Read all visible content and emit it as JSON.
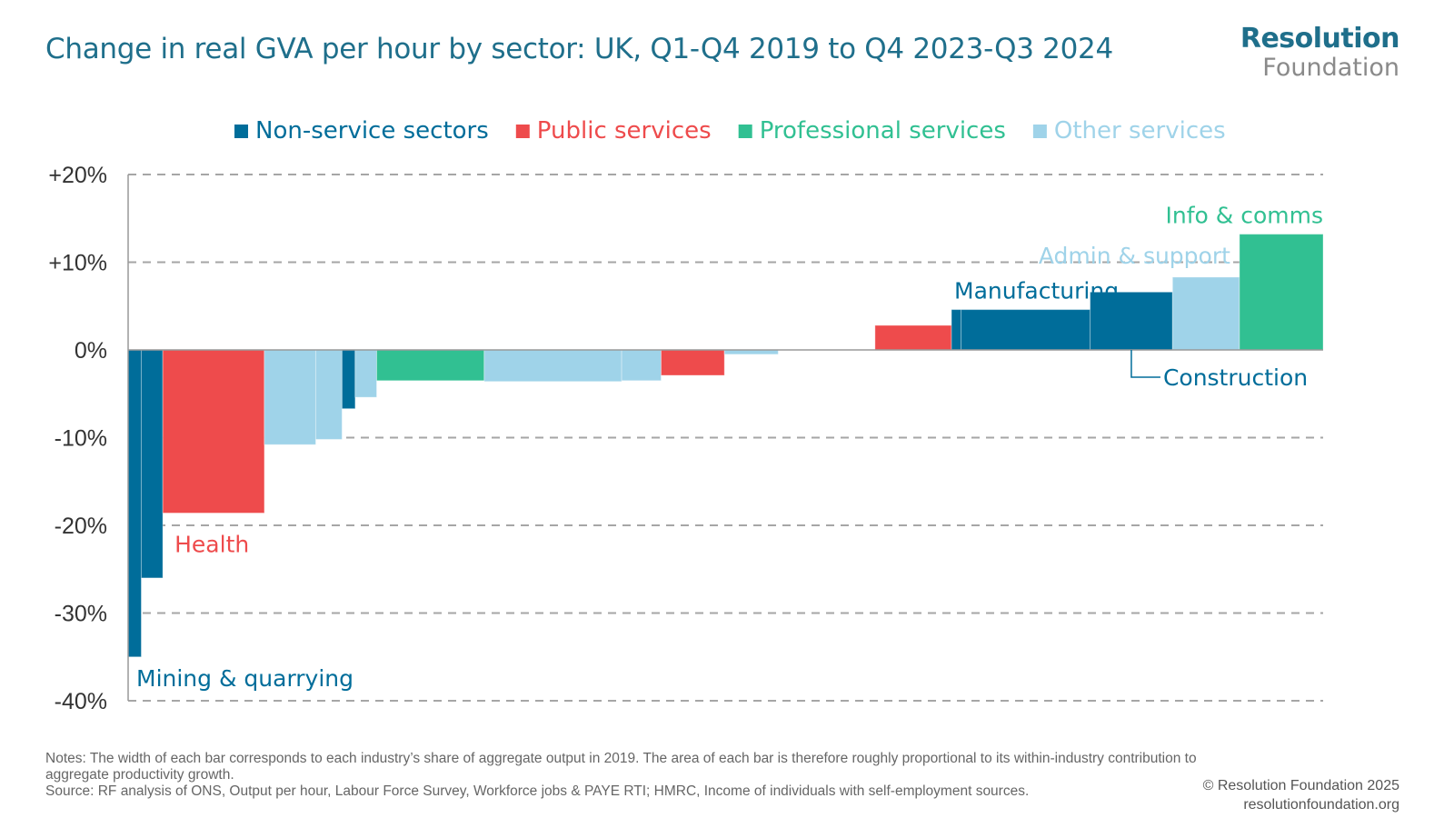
{
  "header": {
    "title": "Change in real GVA per hour by sector: UK, Q1-Q4 2019 to Q4 2023-Q3 2024",
    "logo_line1": "Resolution",
    "logo_line2": "Foundation"
  },
  "colors": {
    "Non-service sectors": "#006d9a",
    "Public services": "#ee4b4c",
    "Professional services": "#31c092",
    "Other services": "#9fd3e9",
    "grid": "#a6a6a6",
    "axis_text": "#333333"
  },
  "chart_data": {
    "type": "bar",
    "subtype": "variable-width",
    "title": "Change in real GVA per hour by sector: UK, Q1-Q4 2019 to Q4 2023-Q3 2024",
    "ylim": [
      -40,
      20
    ],
    "yticks": [
      20,
      10,
      0,
      -10,
      -20,
      -30,
      -40
    ],
    "ytick_labels": [
      "+20%",
      "+10%",
      "0%",
      "-10%",
      "-20%",
      "-30%",
      "-40%"
    ],
    "grid": true,
    "legend_placement": "top",
    "legend": [
      "Non-service sectors",
      "Public services",
      "Professional services",
      "Other services"
    ],
    "x_total_width": 100,
    "bars": [
      {
        "group": "Non-service sectors",
        "share": 1.1,
        "value": -35
      },
      {
        "group": "Non-service sectors",
        "share": 1.8,
        "value": -26
      },
      {
        "group": "Public services",
        "share": 8.5,
        "value": -18.6
      },
      {
        "group": "Other services",
        "share": 4.3,
        "value": -10.8
      },
      {
        "group": "Other services",
        "share": 2.2,
        "value": -10.2
      },
      {
        "group": "Non-service sectors",
        "share": 1.1,
        "value": -6.7
      },
      {
        "group": "Other services",
        "share": 1.8,
        "value": -5.4
      },
      {
        "group": "Professional services",
        "share": 9.0,
        "value": -3.5
      },
      {
        "group": "Other services",
        "share": 11.5,
        "value": -3.6
      },
      {
        "group": "Other services",
        "share": 3.3,
        "value": -3.5
      },
      {
        "group": "Public services",
        "share": 5.3,
        "value": -2.9
      },
      {
        "group": "Other services",
        "share": 4.5,
        "value": -0.5
      },
      {
        "group": "Other services",
        "share": 8.1,
        "value": 0
      },
      {
        "group": "Public services",
        "share": 6.4,
        "value": 2.8
      },
      {
        "group": "Non-service sectors",
        "share": 0.8,
        "value": 4.6
      },
      {
        "group": "Non-service sectors",
        "share": 10.8,
        "value": 4.6
      },
      {
        "group": "Non-service sectors",
        "share": 6.9,
        "value": 6.6
      },
      {
        "group": "Other services",
        "share": 5.6,
        "value": 8.3
      },
      {
        "group": "Professional services",
        "share": 7.0,
        "value": 13.2
      }
    ],
    "annotations": [
      {
        "text": "Mining & quarrying",
        "bar": 0,
        "group": "Non-service sectors"
      },
      {
        "text": "Health",
        "bar": 2,
        "group": "Public services"
      },
      {
        "text": "Manufacturing",
        "bar": 15,
        "group": "Non-service sectors"
      },
      {
        "text": "Construction",
        "bar": 16,
        "group": "Non-service sectors"
      },
      {
        "text": "Admin & support",
        "bar": 17,
        "group": "Other services"
      },
      {
        "text": "Info & comms",
        "bar": 18,
        "group": "Professional services"
      }
    ]
  },
  "footer": {
    "notes_line1": "Notes: The width of each bar corresponds to each industry’s share of aggregate output in 2019. The area of each bar is therefore roughly proportional to its within-industry contribution to aggregate productivity growth.",
    "notes_line2": "Source: RF analysis of ONS, Output per hour, Labour Force Survey, Workforce jobs & PAYE RTI; HMRC, Income of individuals with self-employment sources.",
    "copyright": "© Resolution Foundation 2025",
    "website": "resolutionfoundation.org"
  }
}
